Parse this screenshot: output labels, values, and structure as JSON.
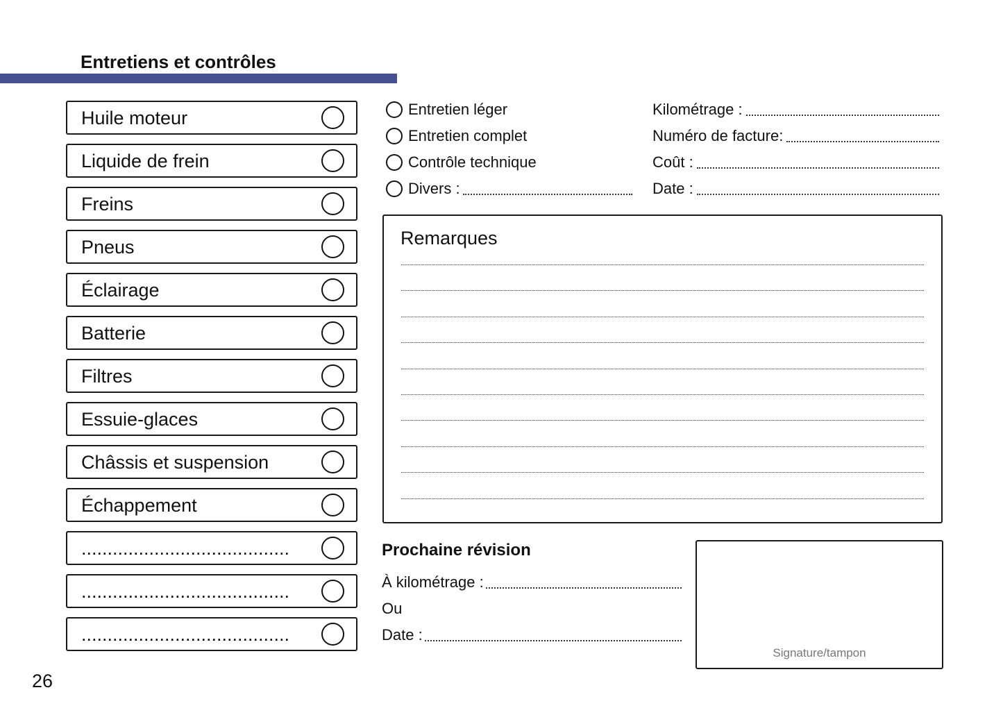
{
  "header": {
    "title": "Entretiens et contrôles",
    "accent_color": "#464f8f"
  },
  "checklist": [
    {
      "label": "Huile moteur"
    },
    {
      "label": "Liquide de frein"
    },
    {
      "label": "Freins"
    },
    {
      "label": "Pneus"
    },
    {
      "label": "Éclairage"
    },
    {
      "label": "Batterie"
    },
    {
      "label": "Filtres"
    },
    {
      "label": "Essuie-glaces"
    },
    {
      "label": "Châssis et suspension"
    },
    {
      "label": "Échappement"
    },
    {
      "label": "........................................"
    },
    {
      "label": "........................................"
    },
    {
      "label": "........................................"
    }
  ],
  "service_types": [
    {
      "label": "Entretien léger"
    },
    {
      "label": "Entretien complet"
    },
    {
      "label": "Contrôle technique"
    },
    {
      "label": "Divers :"
    }
  ],
  "fields": [
    {
      "label": "Kilométrage :"
    },
    {
      "label": "Numéro de facture:"
    },
    {
      "label": "Coût :"
    },
    {
      "label": "Date :"
    }
  ],
  "remarks": {
    "title": "Remarques"
  },
  "next_service": {
    "title": "Prochaine révision",
    "km_label": "À kilométrage :",
    "or_label": "Ou",
    "date_label": "Date :"
  },
  "signature": {
    "label": "Signature/tampon"
  },
  "page_number": "26"
}
